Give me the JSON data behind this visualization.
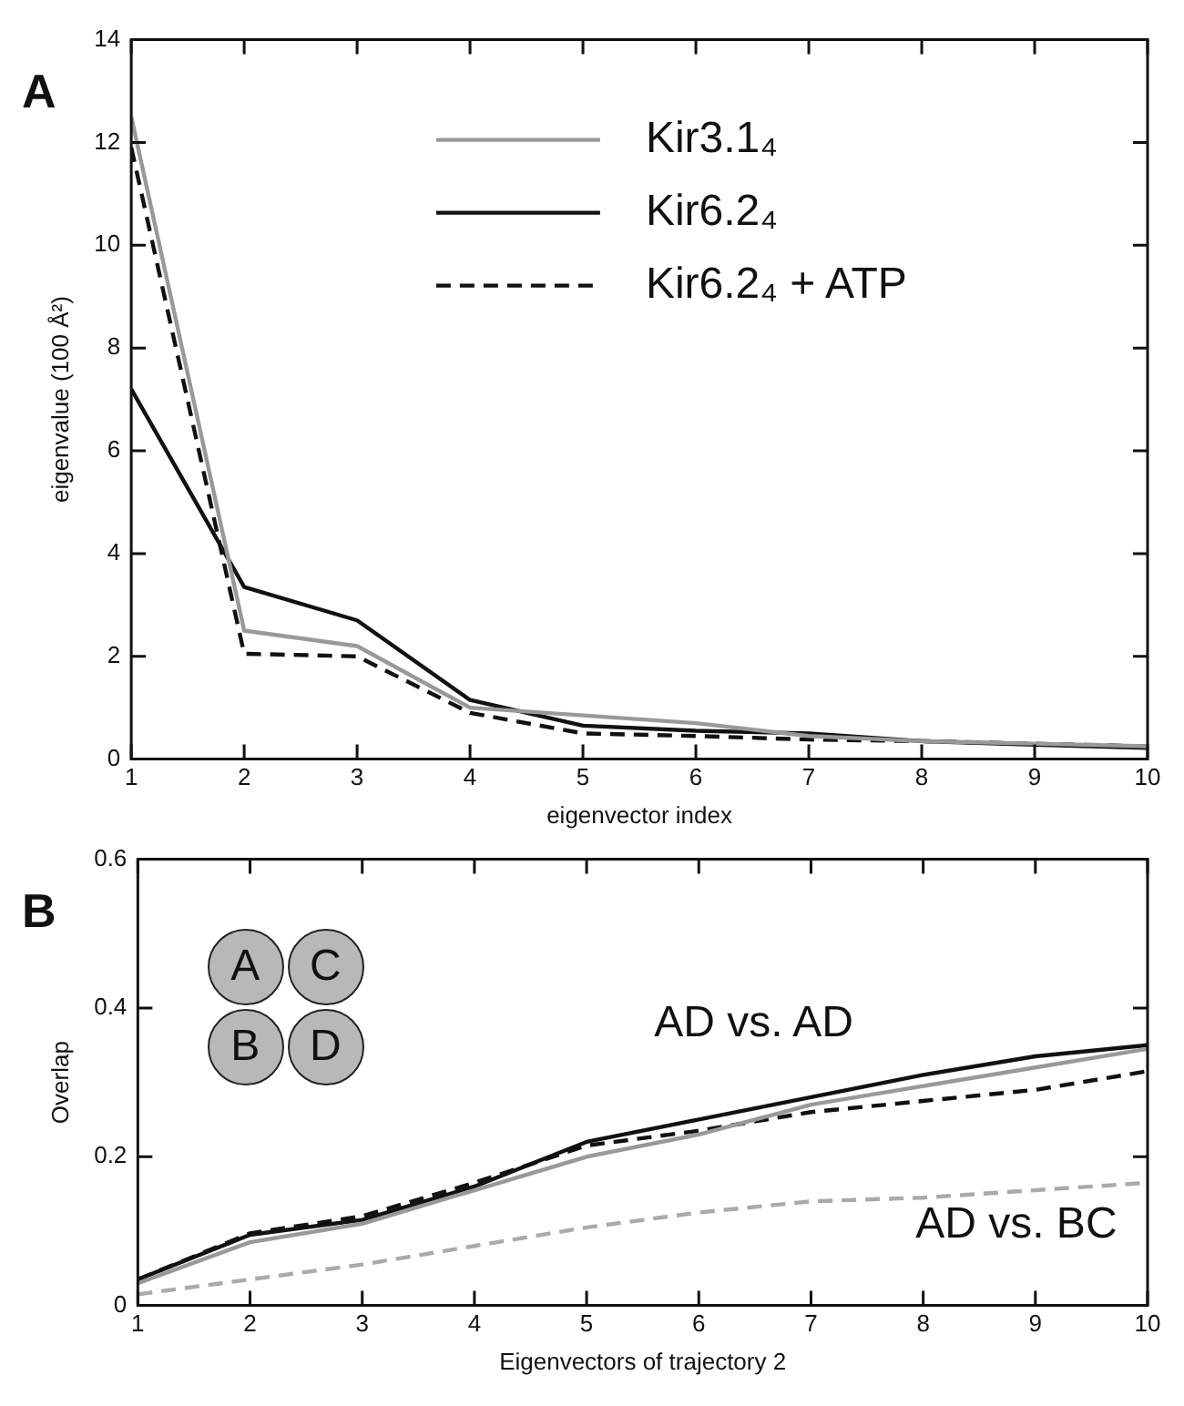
{
  "chart_data": [
    {
      "type": "line",
      "title": "A",
      "xlabel": "eigenvector index",
      "ylabel": "eigenvalue (100 Å²)",
      "x": [
        1,
        2,
        3,
        4,
        5,
        6,
        7,
        8,
        9,
        10
      ],
      "xlim": [
        1,
        10
      ],
      "xticks": [
        1,
        2,
        3,
        4,
        5,
        6,
        7,
        8,
        9,
        10
      ],
      "ylim": [
        0,
        14
      ],
      "yticks": [
        0,
        2,
        4,
        6,
        8,
        10,
        12,
        14
      ],
      "grid": false,
      "legend": "top right",
      "marker": "none",
      "series": [
        {
          "name": "Kir3.1₄",
          "color": "#999999",
          "line_style": "solid",
          "values": [
            12.5,
            2.5,
            2.2,
            1.0,
            0.85,
            0.7,
            0.45,
            0.35,
            0.3,
            0.25
          ]
        },
        {
          "name": "Kir6.2₄",
          "color": "#111111",
          "line_style": "solid",
          "values": [
            7.2,
            3.35,
            2.7,
            1.15,
            0.65,
            0.55,
            0.5,
            0.35,
            0.28,
            0.22
          ]
        },
        {
          "name": "Kir6.2₄ + ATP",
          "color": "#111111",
          "line_style": "dashed",
          "values": [
            11.9,
            2.05,
            2.0,
            0.9,
            0.5,
            0.45,
            0.38,
            0.35,
            0.3,
            0.25
          ]
        }
      ]
    },
    {
      "type": "line",
      "title": "B",
      "xlabel": "Eigenvectors of trajectory 2",
      "ylabel": "Overlap",
      "x": [
        1,
        2,
        3,
        4,
        5,
        6,
        7,
        8,
        9,
        10
      ],
      "xlim": [
        1,
        10
      ],
      "xticks": [
        1,
        2,
        3,
        4,
        5,
        6,
        7,
        8,
        9,
        10
      ],
      "ylim": [
        0,
        0.6
      ],
      "yticks": [
        0,
        0.2,
        0.4,
        0.6
      ],
      "grid": false,
      "legend": false,
      "marker": "none",
      "annotations": [
        "A",
        "C",
        "B",
        "D",
        "AD vs. AD",
        "AD vs. BC"
      ],
      "series": [
        {
          "color": "#999999",
          "line_style": "solid",
          "values": [
            0.03,
            0.085,
            0.11,
            0.155,
            0.2,
            0.23,
            0.27,
            0.295,
            0.32,
            0.345
          ]
        },
        {
          "color": "#111111",
          "line_style": "solid",
          "values": [
            0.035,
            0.095,
            0.115,
            0.16,
            0.22,
            0.25,
            0.28,
            0.31,
            0.335,
            0.35
          ]
        },
        {
          "color": "#111111",
          "line_style": "dashed",
          "values": [
            0.035,
            0.097,
            0.12,
            0.165,
            0.215,
            0.235,
            0.26,
            0.275,
            0.29,
            0.315
          ]
        },
        {
          "color": "#aaaaaa",
          "line_style": "dashed",
          "values": [
            0.015,
            0.035,
            0.055,
            0.08,
            0.105,
            0.125,
            0.14,
            0.145,
            0.155,
            0.165
          ]
        }
      ]
    }
  ]
}
